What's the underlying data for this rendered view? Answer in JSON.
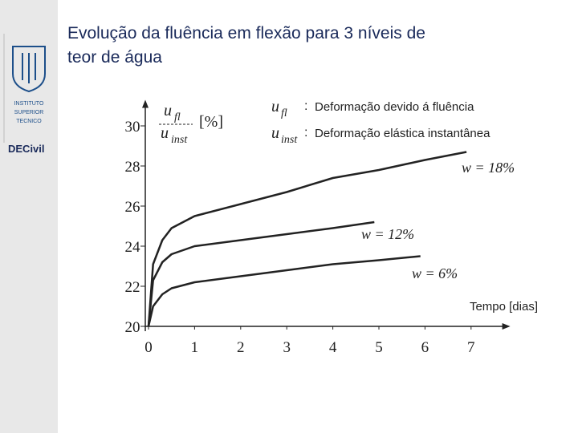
{
  "sidebar": {
    "institute": [
      "INSTITUTO",
      "SUPERIOR",
      "TECNICO"
    ],
    "department": "DECivil"
  },
  "title_lines": [
    "Evolução da fluência em flexão para 3 níveis de",
    "teor de água"
  ],
  "chart_data": {
    "type": "line",
    "ylabel": {
      "numerator": "u",
      "numerator_sub": "fl",
      "denominator": "u",
      "denominator_sub": "inst",
      "unit": "[%]"
    },
    "legend": [
      {
        "symbol": "u",
        "sub": "fl",
        "sep": ":",
        "text": "Deformação devido á fluência"
      },
      {
        "symbol": "u",
        "sub": "inst",
        "sep": ":",
        "text": "Deformação elástica  instantânea"
      }
    ],
    "xlabel": "Tempo [dias]",
    "xlim": [
      0,
      7.85
    ],
    "ylim": [
      20,
      31.3
    ],
    "xticks": [
      0,
      1,
      2,
      3,
      4,
      5,
      6,
      7
    ],
    "yticks": [
      20,
      22,
      24,
      26,
      28,
      30
    ],
    "series": [
      {
        "name": "w = 18%",
        "color": "#222222",
        "x": [
          0,
          0.1,
          0.3,
          0.5,
          1,
          2,
          3,
          4,
          5,
          6,
          6.9
        ],
        "values": [
          20,
          23.1,
          24.3,
          24.9,
          25.5,
          26.1,
          26.7,
          27.4,
          27.8,
          28.3,
          28.7
        ]
      },
      {
        "name": "w = 12%",
        "color": "#222222",
        "x": [
          0,
          0.1,
          0.3,
          0.5,
          1,
          2,
          3,
          4,
          4.9
        ],
        "values": [
          20,
          22.3,
          23.2,
          23.6,
          24.0,
          24.3,
          24.6,
          24.9,
          25.2
        ]
      },
      {
        "name": "w = 6%",
        "color": "#222222",
        "x": [
          0,
          0.1,
          0.3,
          0.5,
          1,
          2,
          3,
          4,
          5,
          5.9
        ],
        "values": [
          20,
          21.0,
          21.6,
          21.9,
          22.2,
          22.5,
          22.8,
          23.1,
          23.3,
          23.5
        ]
      }
    ]
  }
}
